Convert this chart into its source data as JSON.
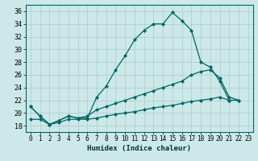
{
  "xlabel": "Humidex (Indice chaleur)",
  "bg_color": "#cce8e8",
  "grid_color": "#aacccc",
  "line_color": "#006666",
  "x_ticks": [
    0,
    1,
    2,
    3,
    4,
    5,
    6,
    7,
    8,
    9,
    10,
    11,
    12,
    13,
    14,
    15,
    16,
    17,
    18,
    19,
    20,
    21,
    22,
    23
  ],
  "y_ticks": [
    18,
    20,
    22,
    24,
    26,
    28,
    30,
    32,
    34,
    36
  ],
  "ylim": [
    17.0,
    37.0
  ],
  "xlim": [
    -0.5,
    23.5
  ],
  "series1": [
    21.0,
    19.5,
    18.2,
    18.8,
    19.5,
    19.2,
    19.2,
    22.5,
    24.2,
    26.8,
    29.0,
    31.5,
    33.0,
    34.0,
    34.0,
    35.8,
    34.5,
    33.0,
    28.0,
    27.2,
    25.0,
    22.0,
    null,
    null
  ],
  "series2": [
    21.0,
    19.5,
    18.2,
    18.8,
    19.5,
    19.2,
    19.5,
    20.5,
    21.0,
    21.5,
    22.0,
    22.5,
    23.0,
    23.5,
    24.0,
    24.5,
    25.0,
    26.0,
    26.5,
    26.8,
    25.5,
    22.5,
    22.0,
    null
  ],
  "series3": [
    19.0,
    19.0,
    18.2,
    18.5,
    19.0,
    19.0,
    19.0,
    19.2,
    19.5,
    19.8,
    20.0,
    20.2,
    20.5,
    20.8,
    21.0,
    21.2,
    21.5,
    21.8,
    22.0,
    22.2,
    22.5,
    22.0,
    22.0,
    null
  ],
  "marker": "D",
  "markersize": 2.0,
  "linewidth": 0.9
}
